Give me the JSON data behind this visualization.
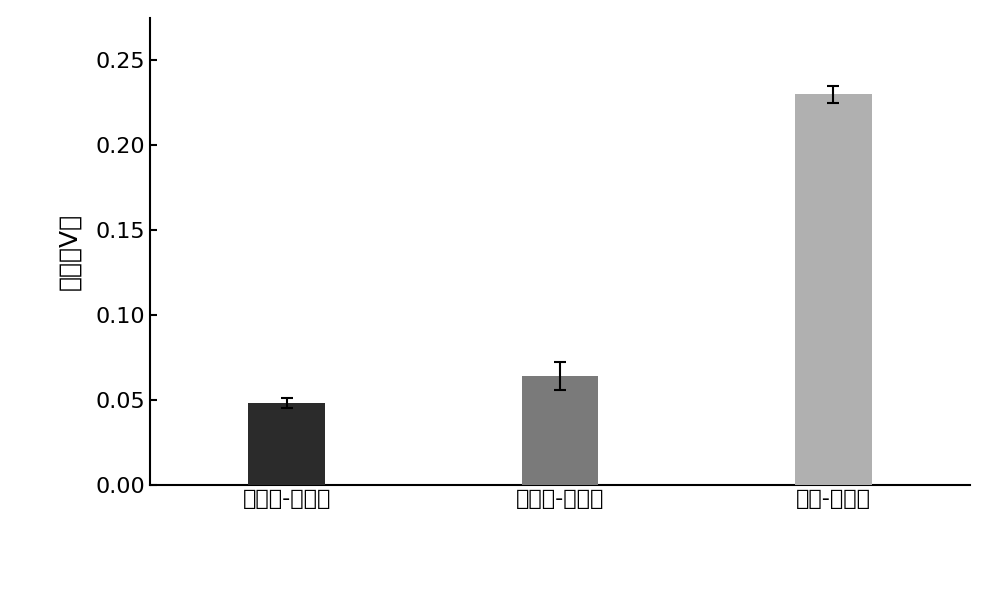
{
  "categories": [
    "础基化-季鐵化",
    "罧基化-季鐵化",
    "氧化-季鐵化"
  ],
  "values": [
    0.048,
    0.064,
    0.23
  ],
  "errors": [
    0.003,
    0.008,
    0.005
  ],
  "bar_colors": [
    "#2b2b2b",
    "#7a7a7a",
    "#b0b0b0"
  ],
  "ylabel": "电压（V）",
  "ylim": [
    0,
    0.275
  ],
  "yticks": [
    0.0,
    0.05,
    0.1,
    0.15,
    0.2,
    0.25
  ],
  "bar_width": 0.28,
  "figure_bg": "#ffffff",
  "axes_bg": "#ffffff",
  "tick_fontsize": 16,
  "label_fontsize": 18,
  "capsize": 4,
  "error_linewidth": 1.5
}
